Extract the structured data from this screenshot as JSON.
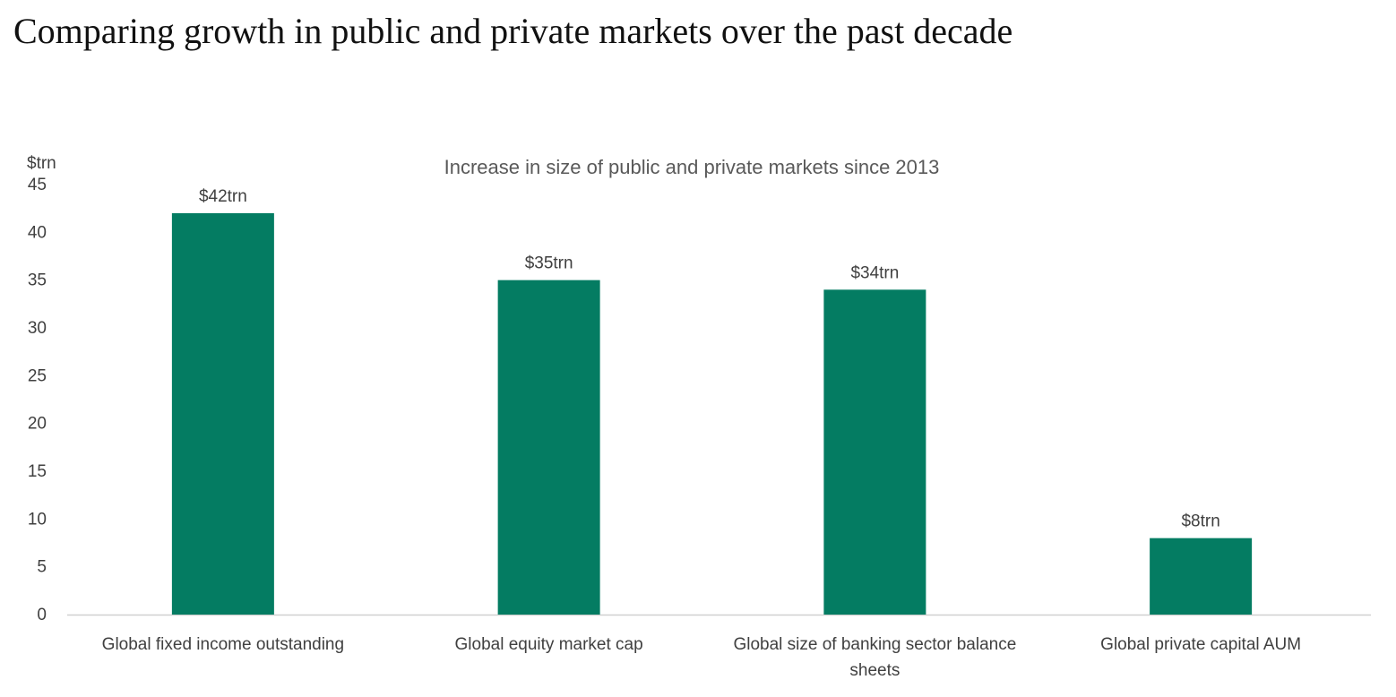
{
  "page": {
    "title": "Comparing growth in public and private markets over the past decade"
  },
  "chart_data": {
    "type": "bar",
    "title": "Increase in size of public and private markets since 2013",
    "ylabel": "$trn",
    "xlabel": "",
    "categories": [
      [
        "Global fixed income outstanding"
      ],
      [
        "Global equity market cap"
      ],
      [
        "Global size of banking sector balance",
        "sheets"
      ],
      [
        "Global private capital AUM"
      ]
    ],
    "values": [
      42,
      35,
      34,
      8
    ],
    "data_labels": [
      "$42trn",
      "$35trn",
      "$34trn",
      "$8trn"
    ],
    "ylim": [
      0,
      45
    ],
    "yticks": [
      0,
      5,
      10,
      15,
      20,
      25,
      30,
      35,
      40,
      45
    ],
    "grid": false,
    "bar_color": "#047c62"
  }
}
